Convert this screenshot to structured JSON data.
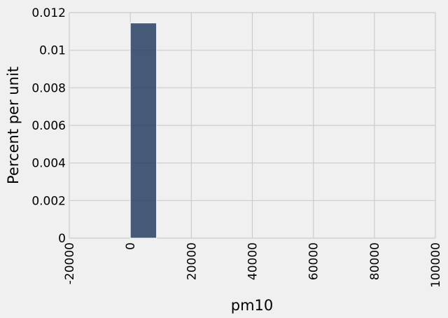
{
  "chart_data": {
    "type": "bar",
    "xlabel": "pm10",
    "ylabel": "Percent per unit",
    "xlim": [
      -20000,
      100000
    ],
    "ylim": [
      0,
      0.012
    ],
    "x_ticks": [
      -20000,
      0,
      20000,
      40000,
      60000,
      80000,
      100000
    ],
    "x_tick_labels": [
      "-20000",
      "0",
      "20000",
      "40000",
      "60000",
      "80000",
      "100000"
    ],
    "y_ticks": [
      0,
      0.002,
      0.004,
      0.006,
      0.008,
      0.01,
      0.012
    ],
    "y_tick_labels": [
      "0",
      "0.002",
      "0.004",
      "0.006",
      "0.008",
      "0.01",
      "0.012"
    ],
    "bins": [
      {
        "start": 0,
        "end": 8600,
        "value": 0.01145
      }
    ],
    "grid": true,
    "colors": {
      "bar": "#263f61",
      "bar_edge": "#ffffff",
      "background": "#f0f0f0",
      "grid": "#cbcbcb"
    }
  }
}
